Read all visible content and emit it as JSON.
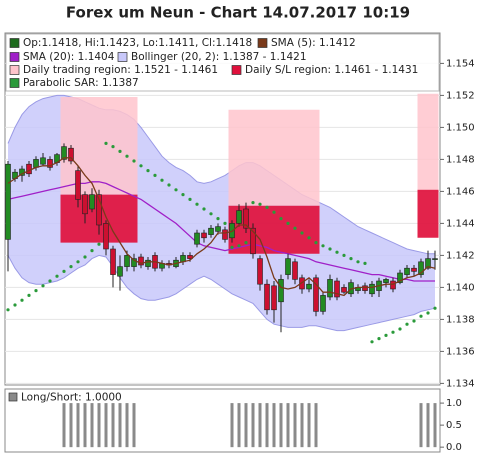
{
  "chart_data": [
    {
      "type": "candlestick",
      "title": "Forex um Neun - Chart 14.07.2017 10:19",
      "ylim": [
        1.1339,
        1.1559
      ],
      "yticks": [
        1.134,
        1.136,
        1.138,
        {
          "value": 1.14,
          "label": "1.140"
        },
        1.142,
        1.144,
        1.146,
        1.148,
        {
          "value": 1.15,
          "label": "1.150"
        },
        1.152,
        1.154
      ],
      "grid": true,
      "legend": "upper left",
      "ohlc": {
        "name": "Op:1.1418, Hi:1.1423, Lo:1.1411, Cl:1.1418",
        "color": "#1e6b1e",
        "up_color": "#228b22",
        "down_color": "#cc1030",
        "open": [
          1.143,
          1.1468,
          1.147,
          1.1477,
          1.1475,
          1.1477,
          1.148,
          1.1478,
          1.148,
          1.1487,
          1.1473,
          1.1458,
          1.1449,
          1.1458,
          1.144,
          1.1424,
          1.1407,
          1.1413,
          1.1413,
          1.1419,
          1.1413,
          1.142,
          1.1412,
          1.1415,
          1.1413,
          1.1416,
          1.142,
          1.1427,
          1.1434,
          1.1433,
          1.1435,
          1.1436,
          1.1431,
          1.144,
          1.1449,
          1.1437,
          1.1418,
          1.1402,
          1.1401,
          1.1391,
          1.1408,
          1.1416,
          1.1406,
          1.1399,
          1.1406,
          1.1385,
          1.1394,
          1.1404,
          1.14,
          1.1396,
          1.1398,
          1.1401,
          1.1396,
          1.1398,
          1.1403,
          1.1404,
          1.1403,
          1.1408,
          1.1412,
          1.1408,
          1.1412,
          1.1418
        ],
        "high": [
          1.1479,
          1.1474,
          1.1476,
          1.1479,
          1.1482,
          1.1484,
          1.1482,
          1.1484,
          1.149,
          1.1489,
          1.1476,
          1.146,
          1.1462,
          1.1461,
          1.1442,
          1.1426,
          1.142,
          1.1423,
          1.1421,
          1.1421,
          1.1419,
          1.1422,
          1.1417,
          1.1417,
          1.1419,
          1.1422,
          1.1422,
          1.1436,
          1.1436,
          1.1439,
          1.144,
          1.1438,
          1.1442,
          1.1452,
          1.1453,
          1.144,
          1.142,
          1.1405,
          1.1404,
          1.1408,
          1.1421,
          1.1418,
          1.1408,
          1.1405,
          1.1408,
          1.1397,
          1.1408,
          1.1406,
          1.1402,
          1.1405,
          1.1402,
          1.1403,
          1.1404,
          1.1406,
          1.1406,
          1.1406,
          1.1411,
          1.1414,
          1.1414,
          1.1418,
          1.1423,
          1.1423
        ],
        "low": [
          1.141,
          1.1466,
          1.1466,
          1.1469,
          1.1473,
          1.1476,
          1.1473,
          1.1476,
          1.1478,
          1.1477,
          1.145,
          1.144,
          1.1447,
          1.1433,
          1.142,
          1.14,
          1.1398,
          1.141,
          1.141,
          1.1412,
          1.1411,
          1.141,
          1.141,
          1.1412,
          1.1412,
          1.1414,
          1.1416,
          1.1425,
          1.1428,
          1.1431,
          1.1433,
          1.1428,
          1.1428,
          1.1438,
          1.1434,
          1.1418,
          1.1398,
          1.1383,
          1.1378,
          1.1372,
          1.1405,
          1.1402,
          1.1396,
          1.1397,
          1.1382,
          1.1383,
          1.1392,
          1.1392,
          1.1396,
          1.1394,
          1.1396,
          1.1396,
          1.1394,
          1.1394,
          1.14,
          1.1397,
          1.1402,
          1.1406,
          1.1407,
          1.1406,
          1.1411,
          1.1411
        ],
        "close": [
          1.1477,
          1.1472,
          1.1474,
          1.1471,
          1.148,
          1.1481,
          1.1475,
          1.1483,
          1.1488,
          1.1479,
          1.1455,
          1.1446,
          1.1458,
          1.1439,
          1.1424,
          1.1408,
          1.1413,
          1.142,
          1.1418,
          1.1414,
          1.1417,
          1.1412,
          1.1415,
          1.1414,
          1.1417,
          1.142,
          1.1418,
          1.1434,
          1.1431,
          1.1437,
          1.1438,
          1.143,
          1.144,
          1.1448,
          1.1437,
          1.1421,
          1.1402,
          1.1386,
          1.1386,
          1.1405,
          1.1418,
          1.1405,
          1.1399,
          1.1402,
          1.1385,
          1.1395,
          1.1405,
          1.1394,
          1.1397,
          1.1403,
          1.14,
          1.1398,
          1.1402,
          1.1404,
          1.1405,
          1.1399,
          1.1409,
          1.1412,
          1.141,
          1.1416,
          1.1418,
          1.1418
        ]
      },
      "bands": [
        {
          "name": "Daily trading region: 1.1521 - 1.1461",
          "color": "#ffc4cc",
          "upper": [
            null,
            null,
            null,
            null,
            null,
            null,
            null,
            null,
            1.1519,
            1.1519,
            1.1519,
            1.1519,
            1.1519,
            1.1519,
            1.1519,
            1.1519,
            1.1519,
            1.1519,
            1.1519,
            null,
            null,
            null,
            null,
            null,
            null,
            null,
            null,
            null,
            null,
            null,
            null,
            null,
            1.1511,
            1.1511,
            1.1511,
            1.1511,
            1.1511,
            1.1511,
            1.1511,
            1.1511,
            1.1511,
            1.1511,
            1.1511,
            1.1511,
            1.1511,
            null,
            null,
            null,
            null,
            null,
            null,
            null,
            null,
            null,
            null,
            null,
            null,
            null,
            null,
            1.1521,
            1.1521,
            1.1521
          ],
          "lower": [
            null,
            null,
            null,
            null,
            null,
            null,
            null,
            null,
            1.1458,
            1.1458,
            1.1458,
            1.1458,
            1.1458,
            1.1458,
            1.1458,
            1.1458,
            1.1458,
            1.1458,
            1.1458,
            null,
            null,
            null,
            null,
            null,
            null,
            null,
            null,
            null,
            null,
            null,
            null,
            null,
            1.1451,
            1.1451,
            1.1451,
            1.1451,
            1.1451,
            1.1451,
            1.1451,
            1.1451,
            1.1451,
            1.1451,
            1.1451,
            1.1451,
            1.1451,
            null,
            null,
            null,
            null,
            null,
            null,
            null,
            null,
            null,
            null,
            null,
            null,
            null,
            null,
            1.1461,
            1.1461,
            1.1461
          ]
        },
        {
          "name": "Daily S/L region: 1.1461 - 1.1431",
          "color": "#e0103c",
          "upper": [
            null,
            null,
            null,
            null,
            null,
            null,
            null,
            null,
            1.1458,
            1.1458,
            1.1458,
            1.1458,
            1.1458,
            1.1458,
            1.1458,
            1.1458,
            1.1458,
            1.1458,
            1.1458,
            null,
            null,
            null,
            null,
            null,
            null,
            null,
            null,
            null,
            null,
            null,
            null,
            null,
            1.1451,
            1.1451,
            1.1451,
            1.1451,
            1.1451,
            1.1451,
            1.1451,
            1.1451,
            1.1451,
            1.1451,
            1.1451,
            1.1451,
            1.1451,
            null,
            null,
            null,
            null,
            null,
            null,
            null,
            null,
            null,
            null,
            null,
            null,
            null,
            null,
            1.1461,
            1.1461,
            1.1461
          ],
          "lower": [
            null,
            null,
            null,
            null,
            null,
            null,
            null,
            null,
            1.1428,
            1.1428,
            1.1428,
            1.1428,
            1.1428,
            1.1428,
            1.1428,
            1.1428,
            1.1428,
            1.1428,
            1.1428,
            null,
            null,
            null,
            null,
            null,
            null,
            null,
            null,
            null,
            null,
            null,
            null,
            null,
            1.1421,
            1.1421,
            1.1421,
            1.1421,
            1.1421,
            1.1421,
            1.1421,
            1.1421,
            1.1421,
            1.1421,
            1.1421,
            1.1421,
            1.1421,
            null,
            null,
            null,
            null,
            null,
            null,
            null,
            null,
            null,
            null,
            null,
            null,
            null,
            null,
            1.1431,
            1.1431,
            1.1431
          ]
        },
        {
          "name": "Bollinger (20, 2): 1.1387 - 1.1421",
          "color": "#c8c8fa",
          "upper": [
            1.149,
            1.15,
            1.1508,
            1.1513,
            1.1516,
            1.1518,
            1.1519,
            1.152,
            1.152,
            1.1519,
            1.1518,
            1.1516,
            1.1514,
            1.1512,
            1.1511,
            1.1511,
            1.151,
            1.1508,
            1.1505,
            1.15,
            1.1494,
            1.1488,
            1.1482,
            1.1478,
            1.1475,
            1.1473,
            1.147,
            1.1466,
            1.1465,
            1.1466,
            1.1468,
            1.147,
            1.1473,
            1.1476,
            1.1478,
            1.1478,
            1.1476,
            1.1473,
            1.147,
            1.1467,
            1.1464,
            1.1461,
            1.1458,
            1.1456,
            1.1454,
            1.1452,
            1.145,
            1.1447,
            1.1444,
            1.1441,
            1.1438,
            1.1436,
            1.1434,
            1.1432,
            1.143,
            1.1428,
            1.1426,
            1.1424,
            1.1423,
            1.1422,
            1.1421,
            1.1421
          ],
          "lower": [
            1.142,
            1.1412,
            1.1406,
            1.1403,
            1.1402,
            1.1402,
            1.1403,
            1.1404,
            1.1406,
            1.1409,
            1.1412,
            1.1414,
            1.1418,
            1.142,
            1.1419,
            1.1413,
            1.1406,
            1.14,
            1.1396,
            1.1393,
            1.1392,
            1.1392,
            1.1393,
            1.1394,
            1.1396,
            1.1399,
            1.1402,
            1.1405,
            1.1407,
            1.1405,
            1.1402,
            1.1399,
            1.1396,
            1.1394,
            1.1392,
            1.139,
            1.1385,
            1.138,
            1.1377,
            1.1376,
            1.1375,
            1.1375,
            1.1375,
            1.1376,
            1.1376,
            1.1375,
            1.1374,
            1.1373,
            1.1373,
            1.1374,
            1.1375,
            1.1376,
            1.1377,
            1.1378,
            1.1379,
            1.138,
            1.1381,
            1.1382,
            1.1383,
            1.1385,
            1.1386,
            1.1387
          ]
        }
      ],
      "series": [
        {
          "name": "SMA (5): 1.1412",
          "color": "#7a3a1a",
          "style": "line",
          "values": [
            1.1465,
            1.1468,
            1.1471,
            1.1473,
            1.1475,
            1.1476,
            1.1476,
            1.1478,
            1.1481,
            1.1481,
            1.1476,
            1.147,
            1.1465,
            1.1455,
            1.1444,
            1.1435,
            1.1428,
            1.1421,
            1.1417,
            1.1415,
            1.1416,
            1.1416,
            1.1415,
            1.1414,
            1.1415,
            1.1416,
            1.1417,
            1.1421,
            1.1424,
            1.1428,
            1.1434,
            1.1434,
            1.1435,
            1.1439,
            1.1439,
            1.1435,
            1.143,
            1.1419,
            1.1406,
            1.14,
            1.1399,
            1.14,
            1.1403,
            1.1406,
            1.1402,
            1.1397,
            1.1397,
            1.1396,
            1.1395,
            1.1399,
            1.14,
            1.14,
            1.14,
            1.1401,
            1.1402,
            1.1402,
            1.1404,
            1.1406,
            1.1407,
            1.1409,
            1.1413,
            1.1412
          ]
        },
        {
          "name": "SMA (20): 1.1404",
          "color": "#a020c8",
          "style": "line",
          "values": [
            1.1455,
            1.1456,
            1.1457,
            1.1458,
            1.1459,
            1.146,
            1.1461,
            1.1462,
            1.1463,
            1.1464,
            1.1465,
            1.1465,
            1.1466,
            1.1466,
            1.1465,
            1.1463,
            1.1461,
            1.1459,
            1.1457,
            1.1455,
            1.1452,
            1.1449,
            1.1446,
            1.1443,
            1.144,
            1.1436,
            1.1432,
            1.1428,
            1.1426,
            1.1425,
            1.1424,
            1.1423,
            1.1424,
            1.1425,
            1.1426,
            1.1427,
            1.1426,
            1.1425,
            1.1423,
            1.1422,
            1.1421,
            1.142,
            1.1419,
            1.1418,
            1.1416,
            1.1415,
            1.1414,
            1.1413,
            1.1412,
            1.1411,
            1.141,
            1.1409,
            1.1408,
            1.1408,
            1.1407,
            1.1406,
            1.1405,
            1.1405,
            1.1404,
            1.1404,
            1.1404,
            1.1404
          ]
        },
        {
          "name": "Parabolic SAR: 1.1387",
          "color": "#2a9a3a",
          "style": "dots",
          "values": [
            1.1386,
            1.1389,
            1.1392,
            1.1395,
            1.1398,
            1.1401,
            1.1404,
            1.1407,
            1.141,
            1.1413,
            1.1416,
            1.1419,
            1.1423,
            1.1427,
            1.149,
            1.1488,
            1.1485,
            1.1482,
            1.1479,
            1.1476,
            1.1473,
            1.147,
            1.1467,
            1.1464,
            1.1461,
            1.1458,
            1.1455,
            1.1452,
            1.1449,
            1.1446,
            1.1443,
            1.144,
            1.1425,
            1.1426,
            1.1428,
            1.1453,
            1.1452,
            1.145,
            1.1447,
            1.1443,
            1.144,
            1.1437,
            1.1434,
            1.1431,
            1.1428,
            1.1426,
            1.1424,
            1.1422,
            1.142,
            1.1418,
            1.1416,
            1.1415,
            1.1366,
            1.1368,
            1.137,
            1.1372,
            1.1374,
            1.1377,
            1.1379,
            1.1382,
            1.1384,
            1.1387
          ]
        }
      ]
    },
    {
      "type": "bar",
      "ylim": [
        -0.11,
        1.32
      ],
      "yticks": [
        {
          "value": 0,
          "label": "0.0"
        },
        {
          "value": 0.5,
          "label": "0.5"
        },
        {
          "value": 1,
          "label": "1.0"
        }
      ],
      "legend": "upper left",
      "series": [
        {
          "name": "Long/Short: 1.0000",
          "color": "#8a8a8a",
          "values": [
            0,
            0,
            0,
            0,
            0,
            0,
            0,
            0,
            1,
            1,
            1,
            1,
            1,
            1,
            1,
            1,
            1,
            1,
            1,
            0,
            0,
            0,
            0,
            0,
            0,
            0,
            0,
            0,
            0,
            0,
            0,
            0,
            1,
            1,
            1,
            1,
            1,
            1,
            1,
            1,
            1,
            1,
            1,
            1,
            1,
            0,
            0,
            0,
            0,
            0,
            0,
            0,
            0,
            0,
            0,
            0,
            0,
            0,
            0,
            1,
            1,
            1
          ]
        }
      ]
    }
  ]
}
